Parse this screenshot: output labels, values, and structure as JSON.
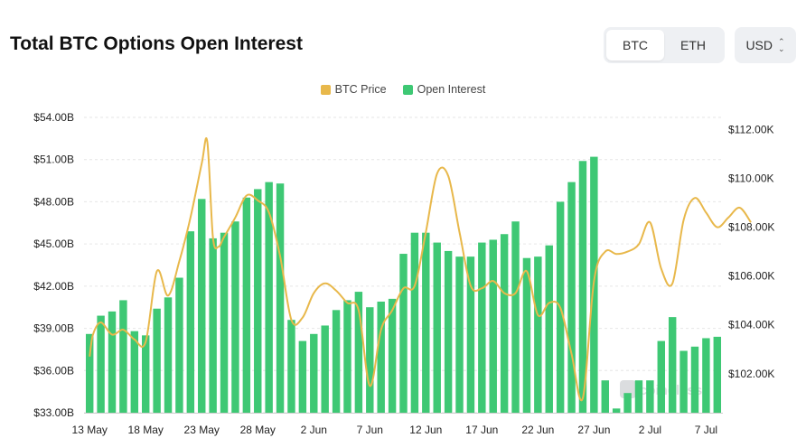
{
  "header": {
    "title": "Total BTC Options Open Interest",
    "asset_toggle": [
      {
        "label": "BTC",
        "active": true
      },
      {
        "label": "ETH",
        "active": false
      }
    ],
    "currency": "USD"
  },
  "legend": [
    {
      "label": "BTC Price",
      "color": "#e8b84b"
    },
    {
      "label": "Open Interest",
      "color": "#3ec874"
    }
  ],
  "watermark": "coinglass",
  "chart_data": {
    "type": "bar",
    "title": "Total BTC Options Open Interest",
    "x_tick_labels": [
      "13 May",
      "18 May",
      "23 May",
      "28 May",
      "2 Jun",
      "7 Jun",
      "12 Jun",
      "17 Jun",
      "22 Jun",
      "27 Jun",
      "2 Jul",
      "7 Jul"
    ],
    "y_left_ticks": [
      "$33.00B",
      "$36.00B",
      "$39.00B",
      "$42.00B",
      "$45.00B",
      "$48.00B",
      "$51.00B",
      "$54.00B"
    ],
    "y_right_ticks": [
      "$102.00K",
      "$104.00K",
      "$106.00K",
      "$108.00K",
      "$110.00K",
      "$112.00K"
    ],
    "y_left_range": [
      33,
      54
    ],
    "y_right_range": [
      100.4,
      112.5
    ],
    "grid": true,
    "legend_position": "top-center",
    "open_interest_billions": [
      38.6,
      39.9,
      40.2,
      41.0,
      38.8,
      38.5,
      40.4,
      41.2,
      42.6,
      45.9,
      48.2,
      45.4,
      45.8,
      46.6,
      48.3,
      48.9,
      49.4,
      49.3,
      39.6,
      38.1,
      38.6,
      39.2,
      40.3,
      41.0,
      41.6,
      40.5,
      40.9,
      41.1,
      44.3,
      45.8,
      45.8,
      45.1,
      44.5,
      44.1,
      44.1,
      45.1,
      45.3,
      45.7,
      46.6,
      44.0,
      44.1,
      44.9,
      48.0,
      49.4,
      50.9,
      51.2,
      35.3,
      33.3,
      34.4,
      35.3,
      35.3,
      38.1,
      39.8,
      37.4,
      37.7,
      38.3,
      38.4
    ],
    "series": [
      {
        "name": "BTC Price",
        "axis": "right",
        "points": [
          [
            0,
            102.7
          ],
          [
            0.3,
            103.6
          ],
          [
            1,
            104.1
          ],
          [
            2,
            103.6
          ],
          [
            3,
            103.8
          ],
          [
            4,
            103.4
          ],
          [
            5,
            103.3
          ],
          [
            6,
            106.2
          ],
          [
            7,
            105.2
          ],
          [
            8,
            106.6
          ],
          [
            9,
            108.4
          ],
          [
            10,
            110.6
          ],
          [
            10.5,
            111.5
          ],
          [
            11,
            107.6
          ],
          [
            11.5,
            107.2
          ],
          [
            12,
            107.6
          ],
          [
            13,
            108.4
          ],
          [
            14,
            109.3
          ],
          [
            15,
            109.1
          ],
          [
            16,
            108.6
          ],
          [
            17,
            106.8
          ],
          [
            18,
            104.2
          ],
          [
            19,
            104.3
          ],
          [
            20,
            105.3
          ],
          [
            21,
            105.7
          ],
          [
            22,
            105.4
          ],
          [
            23,
            104.9
          ],
          [
            24,
            104.6
          ],
          [
            25,
            101.5
          ],
          [
            26,
            103.8
          ],
          [
            27,
            104.6
          ],
          [
            28,
            105.5
          ],
          [
            29,
            105.6
          ],
          [
            30,
            107.8
          ],
          [
            31,
            110.2
          ],
          [
            32,
            110.1
          ],
          [
            33,
            107.8
          ],
          [
            34,
            105.6
          ],
          [
            35,
            105.5
          ],
          [
            36,
            105.8
          ],
          [
            37,
            105.3
          ],
          [
            38,
            105.3
          ],
          [
            39,
            106.2
          ],
          [
            40,
            104.4
          ],
          [
            41,
            104.9
          ],
          [
            42,
            104.7
          ],
          [
            43,
            102.8
          ],
          [
            44,
            101.0
          ],
          [
            45,
            105.8
          ],
          [
            46,
            107.0
          ],
          [
            47,
            106.9
          ],
          [
            48,
            107.0
          ],
          [
            49,
            107.3
          ],
          [
            50,
            108.2
          ],
          [
            51,
            106.3
          ],
          [
            52,
            105.7
          ],
          [
            53,
            108.3
          ],
          [
            54,
            109.2
          ],
          [
            55,
            108.6
          ],
          [
            56,
            108.0
          ],
          [
            57,
            108.4
          ],
          [
            58,
            108.8
          ],
          [
            59,
            108.2
          ]
        ]
      }
    ]
  }
}
